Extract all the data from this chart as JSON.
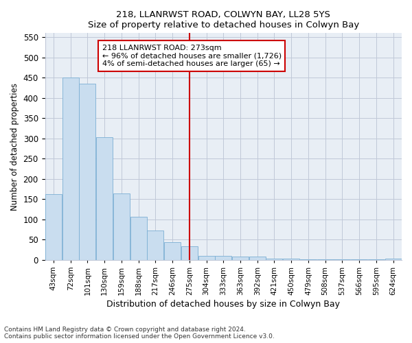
{
  "title1": "218, LLANRWST ROAD, COLWYN BAY, LL28 5YS",
  "title2": "Size of property relative to detached houses in Colwyn Bay",
  "xlabel": "Distribution of detached houses by size in Colwyn Bay",
  "ylabel": "Number of detached properties",
  "categories": [
    "43sqm",
    "72sqm",
    "101sqm",
    "130sqm",
    "159sqm",
    "188sqm",
    "217sqm",
    "246sqm",
    "275sqm",
    "304sqm",
    "333sqm",
    "363sqm",
    "392sqm",
    "421sqm",
    "450sqm",
    "479sqm",
    "508sqm",
    "537sqm",
    "566sqm",
    "595sqm",
    "624sqm"
  ],
  "values": [
    163,
    450,
    435,
    303,
    165,
    106,
    73,
    44,
    33,
    10,
    10,
    8,
    8,
    3,
    3,
    2,
    1,
    1,
    1,
    1,
    4
  ],
  "bar_color": "#c9ddef",
  "bar_edge_color": "#7bafd4",
  "vline_x": 8,
  "vline_color": "#cc0000",
  "annotation_line1": "218 LLANRWST ROAD: 273sqm",
  "annotation_line2": "← 96% of detached houses are smaller (1,726)",
  "annotation_line3": "4% of semi-detached houses are larger (65) →",
  "annotation_box_color": "#ffffff",
  "annotation_box_edge": "#cc0000",
  "ylim": [
    0,
    560
  ],
  "yticks": [
    0,
    50,
    100,
    150,
    200,
    250,
    300,
    350,
    400,
    450,
    500,
    550
  ],
  "footer1": "Contains HM Land Registry data © Crown copyright and database right 2024.",
  "footer2": "Contains public sector information licensed under the Open Government Licence v3.0.",
  "bg_color": "#e8eef5",
  "grid_color": "#c0c8d8"
}
